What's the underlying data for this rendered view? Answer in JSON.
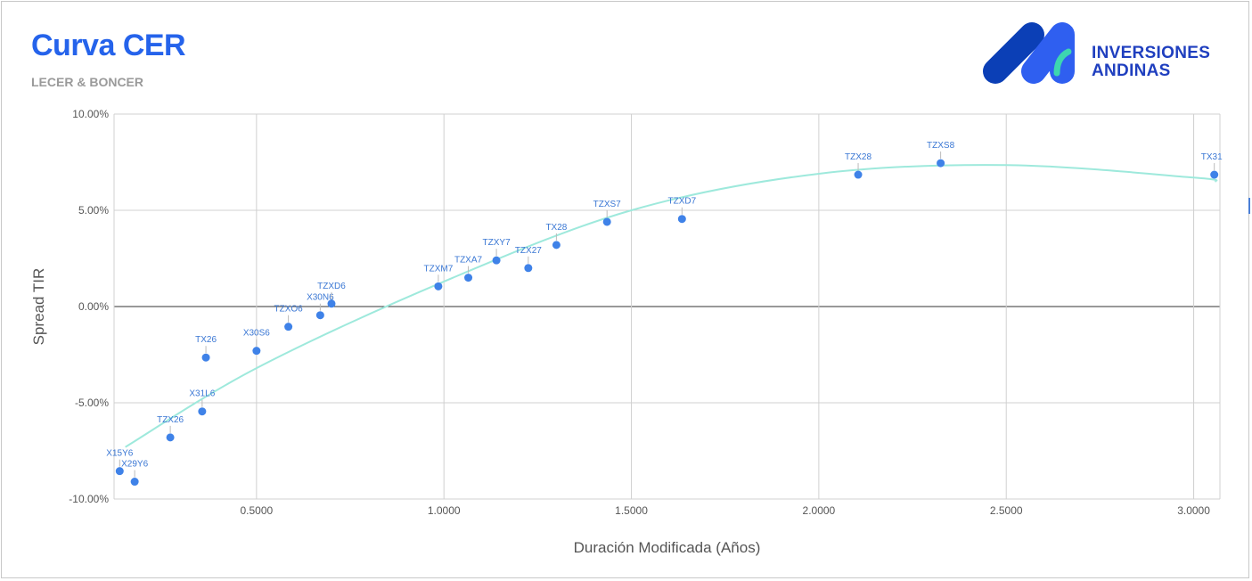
{
  "logo": {
    "line1": "INVERSIONES",
    "line2": "ANDINAS",
    "colors": {
      "dark": "#0b3fb6",
      "mid": "#2f5ff0",
      "accent": "#3dd6b0"
    }
  },
  "colors": {
    "title": "#2563eb",
    "subtitle": "#9a9a9a",
    "points": "#3f82e8",
    "labels": "#3a77d4",
    "trend": "#9ee9dc",
    "grid": "#d0d0d0",
    "zero_line": "#333333"
  },
  "chart_data": {
    "type": "scatter",
    "title": "Curva CER",
    "subtitle": "LECER & BONCER",
    "xlabel": "Duración Modificada (Años)",
    "ylabel": "Spread TIR",
    "xlim": [
      0.12,
      3.07
    ],
    "ylim": [
      -10.0,
      10.0
    ],
    "x_ticks": [
      0.5,
      1.0,
      1.5,
      2.0,
      2.5,
      3.0
    ],
    "x_tick_labels": [
      "0.5000",
      "1.0000",
      "1.5000",
      "2.0000",
      "2.5000",
      "3.0000"
    ],
    "y_ticks": [
      10,
      5,
      0,
      -5,
      -10
    ],
    "y_tick_labels": [
      "10.00%",
      "5.00%",
      "0.00%",
      "-5.00%",
      "-10.00%"
    ],
    "grid": true,
    "legend": "none",
    "points": [
      {
        "label": "X15Y6",
        "x": 0.135,
        "y": -8.55
      },
      {
        "label": "X29Y6",
        "x": 0.175,
        "y": -9.1
      },
      {
        "label": "TZX26",
        "x": 0.27,
        "y": -6.8
      },
      {
        "label": "X31L6",
        "x": 0.355,
        "y": -5.45
      },
      {
        "label": "TX26",
        "x": 0.365,
        "y": -2.65
      },
      {
        "label": "X30S6",
        "x": 0.5,
        "y": -2.3
      },
      {
        "label": "TZXO6",
        "x": 0.585,
        "y": -1.05
      },
      {
        "label": "X30N6",
        "x": 0.67,
        "y": -0.45
      },
      {
        "label": "TZXD6",
        "x": 0.7,
        "y": 0.15
      },
      {
        "label": "TZXM7",
        "x": 0.985,
        "y": 1.05
      },
      {
        "label": "TZXA7",
        "x": 1.065,
        "y": 1.5
      },
      {
        "label": "TZXY7",
        "x": 1.14,
        "y": 2.4
      },
      {
        "label": "TZX27",
        "x": 1.225,
        "y": 2.0
      },
      {
        "label": "TX28",
        "x": 1.3,
        "y": 3.2
      },
      {
        "label": "TZXS7",
        "x": 1.435,
        "y": 4.4
      },
      {
        "label": "TZXD7",
        "x": 1.635,
        "y": 4.55
      },
      {
        "label": "TZX28",
        "x": 2.105,
        "y": 6.85
      },
      {
        "label": "TZXS8",
        "x": 2.325,
        "y": 7.45
      },
      {
        "label": "TX31",
        "x": 3.055,
        "y": 6.85
      }
    ],
    "trendline": {
      "type": "polynomial",
      "x": [
        0.15,
        0.5,
        1.0,
        1.5,
        2.0,
        2.5,
        3.0,
        3.06
      ],
      "y": [
        -7.3,
        -3.2,
        1.3,
        5.0,
        6.9,
        7.35,
        6.7,
        6.5
      ]
    }
  }
}
